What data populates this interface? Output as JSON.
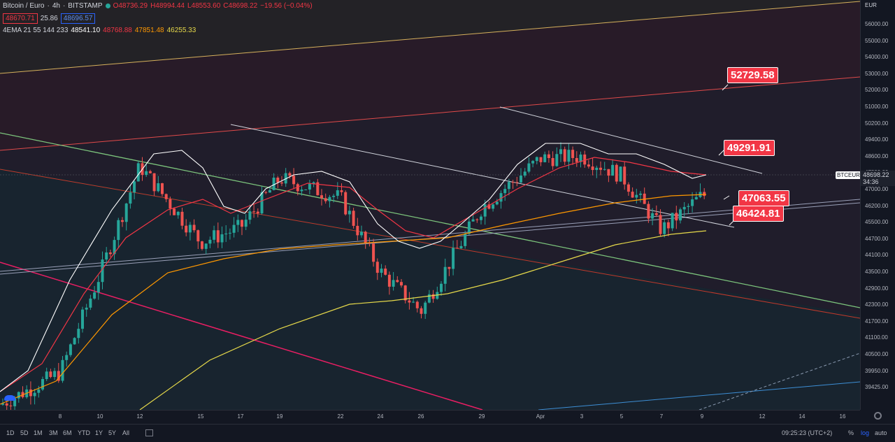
{
  "header": {
    "symbol": "Bitcoin / Euro",
    "interval": "4h",
    "exchange": "BITSTAMP",
    "open": "O48736.29",
    "high": "H48994.44",
    "low": "L48553.60",
    "close": "C48698.22",
    "change": "−19.56 (−0.04%)",
    "bid": "48670.71",
    "spread": "25.86",
    "ask": "48696.57",
    "ema_label": "4EMA 21 55 144 233",
    "ema_values": [
      "48541.10",
      "48768.88",
      "47851.48",
      "46255.33"
    ]
  },
  "price_axis": {
    "currency": "EUR",
    "ticks": [
      "56000.00",
      "55000.00",
      "54000.00",
      "53000.00",
      "52000.00",
      "51000.00",
      "50200.00",
      "49400.00",
      "48600.00",
      "47800.00",
      "47000.00",
      "46200.00",
      "45500.00",
      "44700.00",
      "44100.00",
      "43500.00",
      "42900.00",
      "42300.00",
      "41700.00",
      "41100.00",
      "40500.00",
      "39950.00",
      "39425.00"
    ],
    "current_price": "48698.22",
    "countdown": "34:36",
    "symbol_tag": "BTCEUR"
  },
  "time_axis": {
    "ticks": [
      "8",
      "10",
      "12",
      "15",
      "17",
      "19",
      "22",
      "24",
      "26",
      "29",
      "Apr",
      "3",
      "5",
      "7",
      "9",
      "12",
      "14",
      "16"
    ]
  },
  "price_labels": [
    "52729.58",
    "49291.91",
    "47063.55",
    "46424.81"
  ],
  "bottom_bar": {
    "ranges": [
      "1D",
      "5D",
      "1M",
      "3M",
      "6M",
      "YTD",
      "1Y",
      "5Y",
      "All"
    ],
    "clock": "09:25:23 (UTC+2)",
    "percent": "%",
    "log": "log",
    "auto": "auto"
  },
  "chart_data": {
    "type": "candlestick",
    "symbol": "BTCEUR",
    "x": [
      "8",
      "10",
      "12",
      "15",
      "17",
      "19",
      "22",
      "24",
      "26",
      "29",
      "Apr",
      "3",
      "5",
      "7",
      "9"
    ],
    "close": [
      41500,
      45500,
      49900,
      46800,
      47400,
      49400,
      48600,
      45600,
      44000,
      48200,
      50200,
      50300,
      49500,
      47300,
      48700
    ],
    "ylim": [
      39425,
      56900
    ],
    "colors": {
      "up": "#26a69a",
      "down": "#ef5350",
      "ema21": "#ffffff",
      "ema55": "#f23645",
      "ema144": "#ff9800",
      "ema233": "#e6d94a"
    }
  }
}
